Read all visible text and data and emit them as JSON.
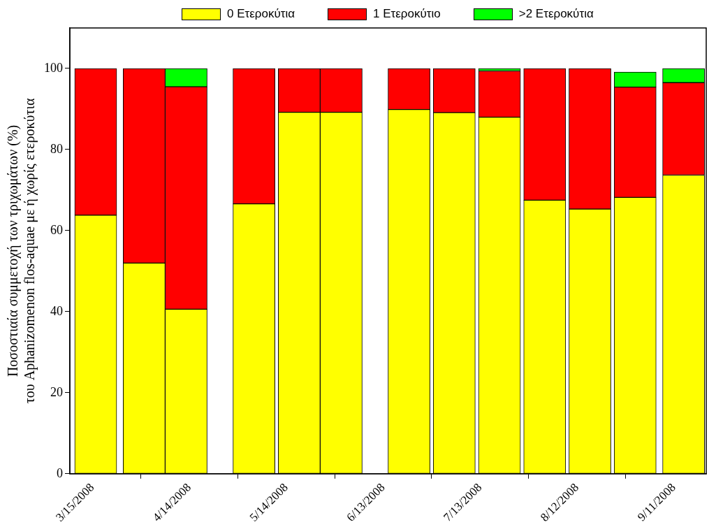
{
  "chart_data": {
    "type": "bar",
    "stacked": true,
    "ylabel": "Ποσοστιαία συμμετοχή των τριχωμάτων (%)\nτου Aphanizomenon flos-aquae με ή χωρίς ετεροκύτια",
    "x": [
      "2008-03-16",
      "2008-03-31",
      "2008-04-13",
      "2008-05-04",
      "2008-05-18",
      "2008-05-31",
      "2008-06-21",
      "2008-07-05",
      "2008-07-19",
      "2008-08-02",
      "2008-08-16",
      "2008-08-30",
      "2008-09-14"
    ],
    "series": [
      {
        "name": "0 Ετεροκύτια",
        "color": "#ffff00",
        "values": [
          63.8,
          52.0,
          40.6,
          66.6,
          89.2,
          89.2,
          89.9,
          89.1,
          88.0,
          67.5,
          65.3,
          68.2,
          73.7
        ]
      },
      {
        "name": "1 Ετεροκύτιο",
        "color": "#ff0000",
        "values": [
          36.2,
          48.0,
          54.9,
          33.4,
          10.8,
          10.8,
          10.1,
          10.9,
          11.4,
          32.5,
          34.7,
          27.2,
          22.8
        ]
      },
      {
        "name": ">2 Ετεροκύτια",
        "color": "#00ff00",
        "values": [
          0,
          0,
          4.5,
          0,
          0,
          0,
          0,
          0,
          0.6,
          0,
          0,
          3.7,
          3.5
        ]
      }
    ],
    "xlim": [
      "2008-03-08",
      "2008-09-21"
    ],
    "xticks": [
      {
        "value": "2008-03-15",
        "label": "3/15/2008"
      },
      {
        "value": "2008-04-14",
        "label": "4/14/2008"
      },
      {
        "value": "2008-05-14",
        "label": "5/14/2008"
      },
      {
        "value": "2008-06-13",
        "label": "6/13/2008"
      },
      {
        "value": "2008-07-13",
        "label": "7/13/2008"
      },
      {
        "value": "2008-08-12",
        "label": "8/12/2008"
      },
      {
        "value": "2008-09-11",
        "label": "9/11/2008"
      }
    ],
    "ylim": [
      0,
      110
    ],
    "yticks": [
      0,
      20,
      40,
      60,
      80,
      100
    ],
    "grid": false,
    "legend": "top"
  }
}
